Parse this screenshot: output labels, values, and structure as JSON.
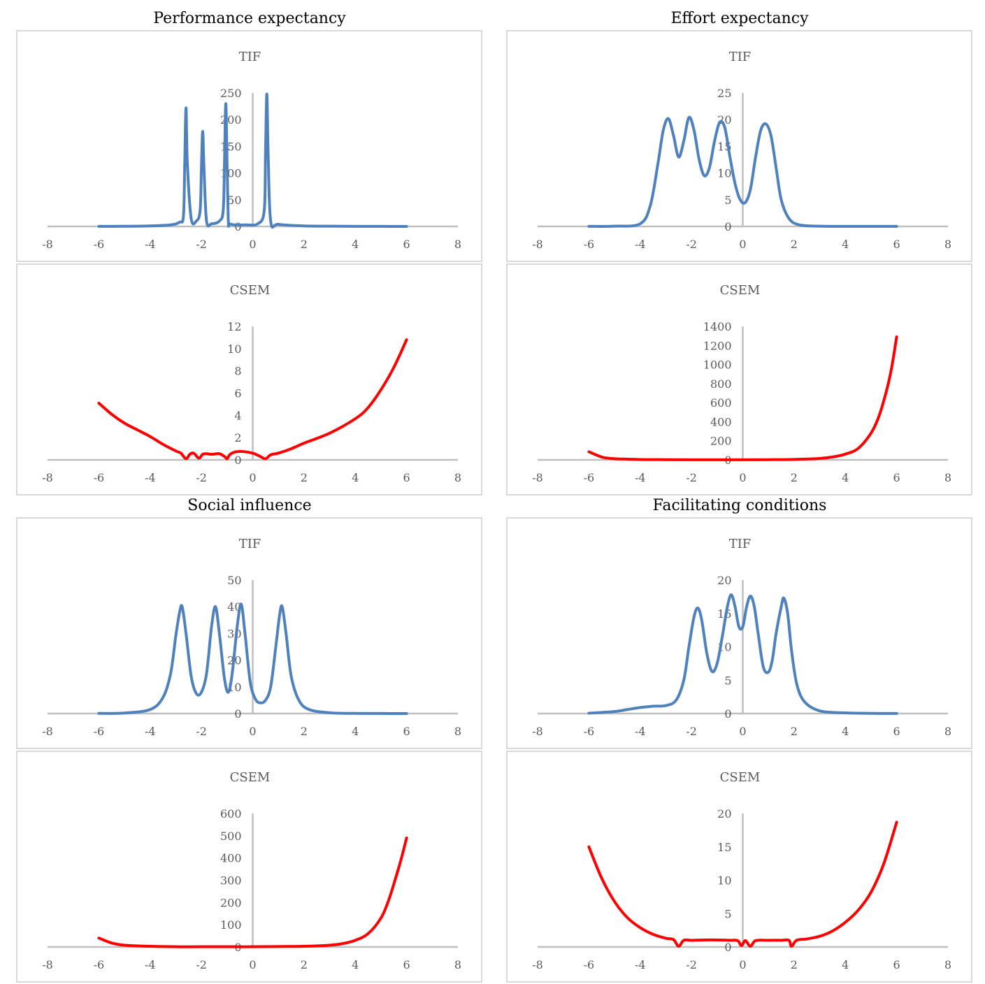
{
  "panels": [
    {
      "title": "Performance expectancy",
      "charts": [
        {
          "type": "line",
          "title": "TIF",
          "color": "#4f81bd",
          "xlim": [
            -8,
            8
          ],
          "ylim": [
            0,
            250
          ],
          "xticks": [
            -8,
            -6,
            -4,
            -2,
            0,
            2,
            4,
            6,
            8
          ],
          "yticks": [
            0,
            50,
            100,
            150,
            200,
            250
          ],
          "x": [
            -6,
            -5,
            -4,
            -3.2,
            -2.85,
            -2.7,
            -2.65,
            -2.6,
            -2.55,
            -2.4,
            -2.2,
            -2.05,
            -2,
            -1.95,
            -1.9,
            -1.8,
            -1.6,
            -1.3,
            -1.15,
            -1.1,
            -1.05,
            -1.0,
            -0.95,
            -0.9,
            -0.7,
            -0.3,
            0.2,
            0.45,
            0.5,
            0.55,
            0.6,
            0.7,
            1.0,
            2,
            3,
            4,
            5,
            6
          ],
          "y": [
            0.1,
            0.3,
            1,
            3,
            8,
            20,
            120,
            222,
            120,
            15,
            10,
            30,
            110,
            178,
            110,
            10,
            5,
            10,
            30,
            120,
            230,
            120,
            10,
            5,
            3,
            3,
            5,
            30,
            140,
            248,
            140,
            10,
            4,
            1,
            0.5,
            0.2,
            0.1,
            0.05
          ]
        },
        {
          "type": "line",
          "title": "CSEM",
          "color": "#ff0000",
          "xlim": [
            -8,
            8
          ],
          "ylim": [
            0,
            12
          ],
          "xticks": [
            -8,
            -6,
            -4,
            -2,
            0,
            2,
            4,
            6,
            8
          ],
          "yticks": [
            0,
            2,
            4,
            6,
            8,
            10,
            12
          ],
          "x": [
            -6,
            -5.5,
            -5,
            -4.5,
            -4,
            -3.5,
            -3,
            -2.8,
            -2.6,
            -2.45,
            -2.3,
            -2.1,
            -1.95,
            -1.8,
            -1.6,
            -1.3,
            -1.1,
            -1.0,
            -0.9,
            -0.7,
            -0.4,
            0,
            0.3,
            0.5,
            0.7,
            1,
            1.5,
            2,
            3,
            4,
            4.5,
            5,
            5.5,
            6
          ],
          "y": [
            5.1,
            4.1,
            3.3,
            2.7,
            2.1,
            1.4,
            0.8,
            0.6,
            0.1,
            0.5,
            0.6,
            0.15,
            0.5,
            0.55,
            0.5,
            0.55,
            0.3,
            0.1,
            0.45,
            0.7,
            0.75,
            0.6,
            0.3,
            0.1,
            0.45,
            0.6,
            1.0,
            1.5,
            2.4,
            3.7,
            4.7,
            6.3,
            8.3,
            10.8
          ]
        }
      ]
    },
    {
      "title": "Effort expectancy",
      "charts": [
        {
          "type": "line",
          "title": "TIF",
          "color": "#4f81bd",
          "xlim": [
            -8,
            8
          ],
          "ylim": [
            0,
            25
          ],
          "xticks": [
            -8,
            -6,
            -4,
            -2,
            0,
            2,
            4,
            6,
            8
          ],
          "yticks": [
            0,
            5,
            10,
            15,
            20,
            25
          ],
          "x": [
            -6,
            -5,
            -4,
            -3.6,
            -3.3,
            -3.1,
            -2.9,
            -2.7,
            -2.5,
            -2.3,
            -2.1,
            -1.9,
            -1.7,
            -1.5,
            -1.3,
            -1.1,
            -0.9,
            -0.7,
            -0.5,
            -0.3,
            -0.1,
            0.1,
            0.3,
            0.5,
            0.7,
            0.9,
            1.1,
            1.3,
            1.5,
            1.8,
            2.2,
            3,
            4,
            5,
            6
          ],
          "y": [
            0.02,
            0.05,
            0.5,
            4,
            12,
            18,
            20.2,
            17,
            13,
            16,
            20.4,
            18,
            12.5,
            9.5,
            11,
            16,
            19.5,
            18.5,
            13,
            8,
            5,
            4.5,
            7,
            13,
            18,
            19.2,
            17,
            11,
            5,
            1.5,
            0.3,
            0.05,
            0.02,
            0.01,
            0.01
          ]
        },
        {
          "type": "line",
          "title": "CSEM",
          "color": "#ff0000",
          "xlim": [
            -8,
            8
          ],
          "ylim": [
            0,
            1400
          ],
          "xticks": [
            -8,
            -6,
            -4,
            -2,
            0,
            2,
            4,
            6,
            8
          ],
          "yticks": [
            0,
            200,
            400,
            600,
            800,
            1000,
            1200,
            1400
          ],
          "x": [
            -6,
            -5.5,
            -5,
            -4,
            -3,
            -2,
            -1,
            0,
            1,
            2,
            3,
            3.5,
            4,
            4.5,
            5,
            5.3,
            5.6,
            5.8,
            6
          ],
          "y": [
            85,
            30,
            12,
            4,
            2,
            1,
            1,
            1,
            2,
            5,
            15,
            30,
            60,
            120,
            280,
            450,
            720,
            960,
            1290
          ]
        }
      ]
    },
    {
      "title": "Social influence",
      "charts": [
        {
          "type": "line",
          "title": "TIF",
          "color": "#4f81bd",
          "xlim": [
            -8,
            8
          ],
          "ylim": [
            0,
            50
          ],
          "xticks": [
            -8,
            -6,
            -4,
            -2,
            0,
            2,
            4,
            6,
            8
          ],
          "yticks": [
            0,
            10,
            20,
            30,
            40,
            50
          ],
          "x": [
            -6,
            -5,
            -4,
            -3.5,
            -3.2,
            -3.0,
            -2.85,
            -2.75,
            -2.6,
            -2.4,
            -2.2,
            -2.0,
            -1.8,
            -1.6,
            -1.45,
            -1.3,
            -1.1,
            -0.95,
            -0.8,
            -0.6,
            -0.45,
            -0.3,
            -0.1,
            0.1,
            0.3,
            0.5,
            0.7,
            0.9,
            1.05,
            1.15,
            1.3,
            1.5,
            1.8,
            2.2,
            3,
            4,
            5,
            6
          ],
          "y": [
            0.05,
            0.2,
            1.5,
            6,
            15,
            29,
            38,
            40,
            30,
            14,
            7.5,
            8,
            15,
            33,
            40,
            30,
            13,
            8,
            15,
            33,
            41,
            30,
            12,
            5.5,
            4,
            5,
            10,
            25,
            37,
            40,
            30,
            14,
            5,
            1.5,
            0.3,
            0.05,
            0.02,
            0.01
          ]
        },
        {
          "type": "line",
          "title": "CSEM",
          "color": "#ff0000",
          "xlim": [
            -8,
            8
          ],
          "ylim": [
            0,
            600
          ],
          "xticks": [
            -8,
            -6,
            -4,
            -2,
            0,
            2,
            4,
            6,
            8
          ],
          "yticks": [
            0,
            100,
            200,
            300,
            400,
            500,
            600
          ],
          "x": [
            -6,
            -5.5,
            -5,
            -4,
            -3,
            -2,
            -1,
            0,
            1,
            2,
            3,
            3.5,
            4,
            4.5,
            5,
            5.3,
            5.6,
            5.8,
            6
          ],
          "y": [
            40,
            18,
            8,
            3,
            1,
            1,
            1,
            1,
            2,
            3,
            8,
            15,
            30,
            60,
            130,
            210,
            320,
            400,
            490
          ]
        }
      ]
    },
    {
      "title": "Facilitating conditions",
      "charts": [
        {
          "type": "line",
          "title": "TIF",
          "color": "#4f81bd",
          "xlim": [
            -8,
            8
          ],
          "ylim": [
            0,
            20
          ],
          "xticks": [
            -8,
            -6,
            -4,
            -2,
            0,
            2,
            4,
            6,
            8
          ],
          "yticks": [
            0,
            5,
            10,
            15,
            20
          ],
          "x": [
            -6,
            -5,
            -4.5,
            -4,
            -3.5,
            -3,
            -2.6,
            -2.3,
            -2.1,
            -1.9,
            -1.75,
            -1.6,
            -1.4,
            -1.2,
            -1.0,
            -0.8,
            -0.6,
            -0.45,
            -0.3,
            -0.15,
            0,
            0.15,
            0.3,
            0.45,
            0.6,
            0.8,
            1.0,
            1.15,
            1.3,
            1.5,
            1.6,
            1.75,
            1.9,
            2.1,
            2.4,
            3,
            4,
            5,
            6
          ],
          "y": [
            0.05,
            0.3,
            0.6,
            0.9,
            1.1,
            1.2,
            2,
            5,
            10,
            14.5,
            15.8,
            14,
            9,
            6.3,
            7.5,
            11.5,
            16,
            17.8,
            16,
            13,
            13,
            16,
            17.6,
            16,
            12,
            7,
            6.2,
            8,
            12,
            16,
            17.3,
            15,
            9.5,
            4.5,
            1.8,
            0.4,
            0.1,
            0.03,
            0.01
          ]
        },
        {
          "type": "line",
          "title": "CSEM",
          "color": "#ff0000",
          "xlim": [
            -8,
            8
          ],
          "ylim": [
            0,
            20
          ],
          "xticks": [
            -8,
            -6,
            -4,
            -2,
            0,
            2,
            4,
            6,
            8
          ],
          "yticks": [
            0,
            5,
            10,
            15,
            20
          ],
          "x": [
            -6,
            -5.5,
            -5,
            -4.5,
            -4,
            -3.5,
            -3,
            -2.7,
            -2.5,
            -2.3,
            -2,
            -1.5,
            -1,
            -0.5,
            -0.2,
            -0.05,
            0.1,
            0.3,
            0.5,
            1,
            1.5,
            1.8,
            1.9,
            2.1,
            2.5,
            3,
            3.5,
            4,
            4.5,
            5,
            5.5,
            6
          ],
          "y": [
            15,
            10.3,
            6.8,
            4.4,
            2.9,
            1.9,
            1.3,
            1.1,
            0.1,
            1,
            1,
            1.05,
            1.05,
            1.0,
            0.95,
            0.2,
            0.95,
            0.1,
            0.95,
            1.0,
            1.0,
            1.0,
            0.1,
            1.0,
            1.2,
            1.6,
            2.4,
            3.7,
            5.5,
            8.2,
            12.5,
            18.7
          ]
        }
      ]
    }
  ]
}
